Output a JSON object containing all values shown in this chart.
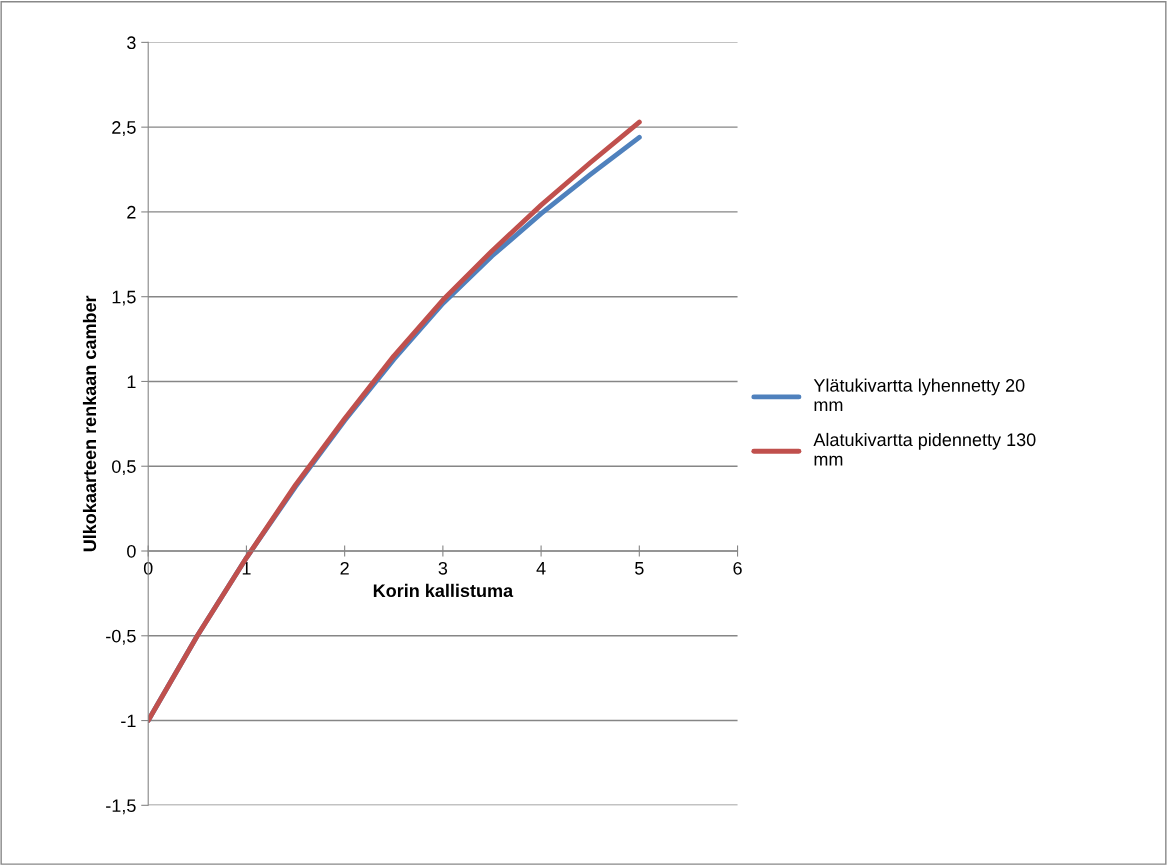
{
  "chart_data": {
    "type": "line",
    "xlabel": "Korin kallistuma",
    "ylabel": "Ulkokaarteen renkaan camber",
    "x": [
      0,
      0.5,
      1,
      1.5,
      2,
      2.5,
      3,
      3.5,
      4,
      4.5,
      5
    ],
    "series": [
      {
        "name": "Ylätukivartta lyhennetty 20 mm",
        "color": "#4f81bd",
        "values": [
          -1,
          -0.5,
          -0.04,
          0.38,
          0.77,
          1.13,
          1.46,
          1.74,
          1.99,
          2.22,
          2.44
        ]
      },
      {
        "name": "Alatukivartta pidennetty 130 mm",
        "color": "#c0504d",
        "values": [
          -1,
          -0.5,
          -0.04,
          0.39,
          0.78,
          1.15,
          1.48,
          1.77,
          2.04,
          2.29,
          2.53
        ]
      }
    ],
    "xlim": [
      0,
      6
    ],
    "xticks": [
      0,
      1,
      2,
      3,
      4,
      5,
      6
    ],
    "ylim": [
      -1.5,
      3
    ],
    "yticks": [
      {
        "value": -1.5,
        "label": "-1,5"
      },
      -1,
      {
        "value": -0.5,
        "label": "-0,5"
      },
      0,
      {
        "value": 0.5,
        "label": "0,5"
      },
      1,
      {
        "value": 1.5,
        "label": "1,5"
      },
      2,
      {
        "value": 2.5,
        "label": "2,5"
      },
      3
    ],
    "grid": "y",
    "legend": "right",
    "marker": "none",
    "line_style": "solid"
  }
}
